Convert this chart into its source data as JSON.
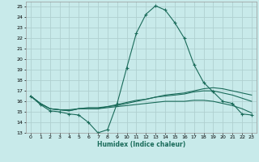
{
  "xlabel": "Humidex (Indice chaleur)",
  "xlim": [
    -0.5,
    23.5
  ],
  "ylim": [
    13,
    25.5
  ],
  "xticks": [
    0,
    1,
    2,
    3,
    4,
    5,
    6,
    7,
    8,
    9,
    10,
    11,
    12,
    13,
    14,
    15,
    16,
    17,
    18,
    19,
    20,
    21,
    22,
    23
  ],
  "yticks": [
    13,
    14,
    15,
    16,
    17,
    18,
    19,
    20,
    21,
    22,
    23,
    24,
    25
  ],
  "bg_color": "#c8eaea",
  "grid_color": "#b0d0d0",
  "line_color": "#1a6b5a",
  "line1_x": [
    0,
    1,
    2,
    3,
    4,
    5,
    6,
    7,
    8,
    9,
    10,
    11,
    12,
    13,
    14,
    15,
    16,
    17,
    18,
    19,
    20,
    21,
    22,
    23
  ],
  "line1_y": [
    16.5,
    15.7,
    15.1,
    15.0,
    14.8,
    14.7,
    14.0,
    13.0,
    13.3,
    15.8,
    19.2,
    22.5,
    24.3,
    25.1,
    24.7,
    23.5,
    22.0,
    19.5,
    17.8,
    16.9,
    16.0,
    15.8,
    14.8,
    14.7
  ],
  "line2_x": [
    0,
    1,
    2,
    3,
    4,
    5,
    6,
    7,
    8,
    9,
    10,
    11,
    12,
    13,
    14,
    15,
    16,
    17,
    18,
    19,
    20,
    21,
    22,
    23
  ],
  "line2_y": [
    16.5,
    15.8,
    15.3,
    15.2,
    15.1,
    15.3,
    15.3,
    15.3,
    15.5,
    15.6,
    15.8,
    16.0,
    16.2,
    16.4,
    16.6,
    16.7,
    16.8,
    17.0,
    17.2,
    17.3,
    17.2,
    17.0,
    16.8,
    16.6
  ],
  "line3_x": [
    0,
    1,
    2,
    3,
    4,
    5,
    6,
    7,
    8,
    9,
    10,
    11,
    12,
    13,
    14,
    15,
    16,
    17,
    18,
    19,
    20,
    21,
    22,
    23
  ],
  "line3_y": [
    16.5,
    15.8,
    15.3,
    15.2,
    15.1,
    15.3,
    15.4,
    15.4,
    15.5,
    15.7,
    15.9,
    16.1,
    16.2,
    16.4,
    16.5,
    16.6,
    16.7,
    16.9,
    17.0,
    17.0,
    16.8,
    16.6,
    16.3,
    16.0
  ],
  "line4_x": [
    0,
    1,
    2,
    3,
    4,
    5,
    6,
    7,
    8,
    9,
    10,
    11,
    12,
    13,
    14,
    15,
    16,
    17,
    18,
    19,
    20,
    21,
    22,
    23
  ],
  "line4_y": [
    16.5,
    15.8,
    15.3,
    15.2,
    15.2,
    15.3,
    15.3,
    15.3,
    15.4,
    15.5,
    15.6,
    15.7,
    15.8,
    15.9,
    16.0,
    16.0,
    16.0,
    16.1,
    16.1,
    16.0,
    15.8,
    15.6,
    15.3,
    14.9
  ]
}
